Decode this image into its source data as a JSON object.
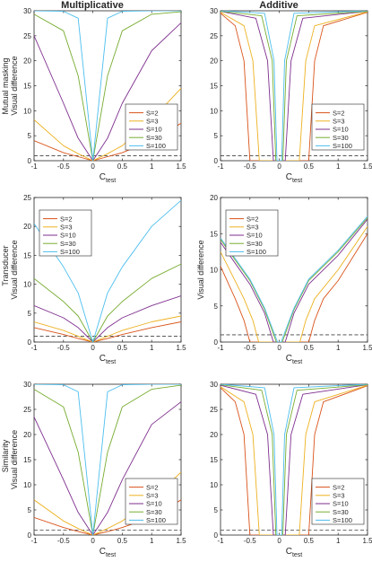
{
  "column_titles": [
    "Multiplicative",
    "Additive"
  ],
  "row_labels": [
    "Mutual masking",
    "Transducer",
    "Similarity"
  ],
  "ylabel": "Visual difference",
  "xlabel": "C",
  "xlabel_sub": "test",
  "threshold": 1,
  "colors": [
    "#d95319",
    "#edb120",
    "#7e2f8e",
    "#77ac30",
    "#4dbeee"
  ],
  "chart_data": [
    {
      "type": "line",
      "title": "Multiplicative",
      "row": "Mutual masking",
      "xlabel": "C test",
      "ylabel": "Visual difference",
      "xlim": [
        -1,
        1.5
      ],
      "ylim": [
        0,
        30
      ],
      "xticks": [
        -1,
        -0.5,
        0,
        0.5,
        1,
        1.5
      ],
      "yticks": [
        0,
        5,
        10,
        15,
        20,
        25,
        30
      ],
      "legend_loc": "bottom-right",
      "reference_line": 1,
      "series": [
        {
          "name": "S=2",
          "x": [
            -1,
            -0.5,
            -0.25,
            0,
            0.25,
            0.5,
            1,
            1.5
          ],
          "y": [
            4,
            1.6,
            0.8,
            0,
            0.8,
            1.6,
            4,
            7.5
          ]
        },
        {
          "name": "S=3",
          "x": [
            -1,
            -0.5,
            -0.25,
            0,
            0.25,
            0.5,
            1,
            1.5
          ],
          "y": [
            8.2,
            3,
            1.4,
            0,
            1.4,
            3,
            8.2,
            14.5
          ]
        },
        {
          "name": "S=10",
          "x": [
            -1,
            -0.5,
            -0.25,
            0,
            0.25,
            0.5,
            1,
            1.5
          ],
          "y": [
            25,
            11.5,
            4.5,
            0,
            4.5,
            11.5,
            22,
            27.6
          ]
        },
        {
          "name": "S=30",
          "x": [
            -1,
            -0.5,
            -0.25,
            0,
            0.25,
            0.5,
            1,
            1.5
          ],
          "y": [
            29.3,
            26,
            17,
            0,
            17,
            26,
            29.3,
            29.8
          ]
        },
        {
          "name": "S=100",
          "x": [
            -1,
            -0.5,
            -0.25,
            0,
            0.25,
            0.5,
            1,
            1.5
          ],
          "y": [
            30,
            29.9,
            28.5,
            0,
            28.5,
            29.9,
            30,
            30
          ]
        }
      ]
    },
    {
      "type": "line",
      "title": "Additive",
      "row": "Mutual masking",
      "xlabel": "C test",
      "ylabel": "",
      "xlim": [
        -1,
        1.5
      ],
      "ylim": [
        0,
        30
      ],
      "xticks": [
        -1,
        -0.5,
        0,
        0.5,
        1,
        1.5
      ],
      "yticks": [
        0,
        5,
        10,
        15,
        20,
        25,
        30
      ],
      "legend_loc": "bottom-right",
      "reference_line": 1,
      "series": [
        {
          "name": "S=2",
          "x": [
            -1,
            -0.75,
            -0.6,
            -0.5,
            0.5,
            0.6,
            0.75,
            1.5
          ],
          "y": [
            29.5,
            27,
            20,
            0,
            0,
            20,
            27,
            29.7
          ]
        },
        {
          "name": "S=3",
          "x": [
            -1,
            -0.6,
            -0.45,
            -0.34,
            0.34,
            0.45,
            0.6,
            1.5
          ],
          "y": [
            29.7,
            27,
            20,
            0,
            0,
            20,
            27,
            29.8
          ]
        },
        {
          "name": "S=10",
          "x": [
            -1,
            -0.4,
            -0.2,
            -0.1,
            0.1,
            0.2,
            0.4,
            1.5
          ],
          "y": [
            29.9,
            28.5,
            20,
            0,
            0,
            20,
            28.5,
            29.9
          ]
        },
        {
          "name": "S=30",
          "x": [
            -1,
            -0.3,
            -0.12,
            -0.06,
            0.06,
            0.12,
            0.3,
            1.5
          ],
          "y": [
            29.9,
            29,
            20,
            0,
            0,
            20,
            29,
            29.9
          ]
        },
        {
          "name": "S=100",
          "x": [
            -1,
            -0.25,
            -0.09,
            -0.04,
            0.04,
            0.09,
            0.25,
            1.5
          ],
          "y": [
            30,
            29.5,
            20,
            0,
            0,
            20,
            29.5,
            30
          ]
        }
      ]
    },
    {
      "type": "line",
      "title": "",
      "row": "Transducer",
      "xlabel": "C test",
      "ylabel": "Visual difference",
      "xlim": [
        -1,
        1.5
      ],
      "ylim": [
        0,
        25
      ],
      "xticks": [
        -1,
        -0.5,
        0,
        0.5,
        1,
        1.5
      ],
      "yticks": [
        0,
        5,
        10,
        15,
        20,
        25
      ],
      "legend_loc": "top-left",
      "reference_line": 1,
      "series": [
        {
          "name": "S=2",
          "x": [
            -1,
            -0.5,
            -0.25,
            0,
            0.25,
            0.5,
            1,
            1.5
          ],
          "y": [
            2.5,
            1.3,
            0.6,
            0,
            0.6,
            1.3,
            2.5,
            3.5
          ]
        },
        {
          "name": "S=3",
          "x": [
            -1,
            -0.5,
            -0.25,
            0,
            0.25,
            0.5,
            1,
            1.5
          ],
          "y": [
            3.5,
            2,
            1,
            0,
            1,
            2,
            3.5,
            4.5
          ]
        },
        {
          "name": "S=10",
          "x": [
            -1,
            -0.5,
            -0.25,
            0,
            0.25,
            0.5,
            1,
            1.5
          ],
          "y": [
            6.3,
            4.2,
            2.5,
            0,
            2.5,
            4.2,
            6.3,
            8
          ]
        },
        {
          "name": "S=30",
          "x": [
            -1,
            -0.5,
            -0.25,
            0,
            0.25,
            0.5,
            1,
            1.5
          ],
          "y": [
            11,
            7,
            4.5,
            0,
            4.5,
            7,
            11,
            13.5
          ]
        },
        {
          "name": "S=100",
          "x": [
            -1,
            -0.5,
            -0.25,
            0,
            0.25,
            0.5,
            1,
            1.5
          ],
          "y": [
            20.5,
            13,
            8.5,
            0,
            8.5,
            13,
            20,
            24.5
          ]
        }
      ]
    },
    {
      "type": "line",
      "title": "",
      "row": "Transducer",
      "xlabel": "C test",
      "ylabel": "Visual difference",
      "xlim": [
        -1,
        1.5
      ],
      "ylim": [
        0,
        20
      ],
      "xticks": [
        -1,
        -0.5,
        0,
        0.5,
        1,
        1.5
      ],
      "yticks": [
        0,
        5,
        10,
        15,
        20
      ],
      "legend_loc": "top-left",
      "reference_line": 1,
      "series": [
        {
          "name": "S=2",
          "x": [
            -1,
            -0.75,
            -0.6,
            -0.5,
            0.5,
            0.6,
            0.75,
            1,
            1.5
          ],
          "y": [
            10.5,
            6,
            3,
            0,
            0,
            3,
            6,
            8.5,
            15
          ]
        },
        {
          "name": "S=3",
          "x": [
            -1,
            -0.6,
            -0.45,
            -0.35,
            0.35,
            0.45,
            0.6,
            1,
            1.5
          ],
          "y": [
            12.5,
            6,
            3,
            0,
            0,
            3,
            6,
            10,
            16
          ]
        },
        {
          "name": "S=10",
          "x": [
            -1,
            -0.5,
            -0.25,
            -0.1,
            0.1,
            0.25,
            0.5,
            1,
            1.5
          ],
          "y": [
            13.8,
            8,
            4,
            0,
            0,
            4,
            8,
            12,
            17
          ]
        },
        {
          "name": "S=30",
          "x": [
            -1,
            -0.5,
            -0.25,
            -0.05,
            0.05,
            0.25,
            0.5,
            1,
            1.5
          ],
          "y": [
            14.2,
            8.5,
            4.5,
            0,
            0,
            4.5,
            8.5,
            12.5,
            17.2
          ]
        },
        {
          "name": "S=100",
          "x": [
            -1,
            -0.5,
            -0.25,
            -0.03,
            0.03,
            0.25,
            0.5,
            1,
            1.5
          ],
          "y": [
            14.4,
            8.7,
            4.7,
            0,
            0,
            4.7,
            8.7,
            12.7,
            17.4
          ]
        }
      ]
    },
    {
      "type": "line",
      "title": "",
      "row": "Similarity",
      "xlabel": "C test",
      "ylabel": "Visual difference",
      "xlim": [
        -1,
        1.5
      ],
      "ylim": [
        0,
        30
      ],
      "xticks": [
        -1,
        -0.5,
        0,
        0.5,
        1,
        1.5
      ],
      "yticks": [
        0,
        5,
        10,
        15,
        20,
        25,
        30
      ],
      "legend_loc": "bottom-right",
      "reference_line": 1,
      "series": [
        {
          "name": "S=2",
          "x": [
            -1,
            -0.5,
            -0.25,
            0,
            0.25,
            0.5,
            1,
            1.5
          ],
          "y": [
            3.5,
            1.5,
            0.7,
            0,
            0.7,
            1.5,
            3.5,
            7
          ]
        },
        {
          "name": "S=3",
          "x": [
            -1,
            -0.5,
            -0.25,
            0,
            0.25,
            0.5,
            1,
            1.5
          ],
          "y": [
            7,
            2.8,
            1.3,
            0,
            1.3,
            2.8,
            7,
            12.5
          ]
        },
        {
          "name": "S=10",
          "x": [
            -1,
            -0.5,
            -0.25,
            0,
            0.25,
            0.5,
            1,
            1.5
          ],
          "y": [
            23.5,
            11,
            4.5,
            0,
            4.5,
            11,
            22,
            26.5
          ]
        },
        {
          "name": "S=30",
          "x": [
            -1,
            -0.5,
            -0.25,
            0,
            0.25,
            0.5,
            1,
            1.5
          ],
          "y": [
            29,
            25.5,
            16.5,
            0,
            16.5,
            25.5,
            29,
            29.8
          ]
        },
        {
          "name": "S=100",
          "x": [
            -1,
            -0.5,
            -0.25,
            0,
            0.25,
            0.5,
            1,
            1.5
          ],
          "y": [
            30,
            29.9,
            28.5,
            0,
            28.5,
            29.9,
            30,
            30
          ]
        }
      ]
    },
    {
      "type": "line",
      "title": "",
      "row": "Similarity",
      "xlabel": "C test",
      "ylabel": "",
      "xlim": [
        -1,
        1.5
      ],
      "ylim": [
        0,
        30
      ],
      "xticks": [
        -1,
        -0.5,
        0,
        0.5,
        1,
        1.5
      ],
      "yticks": [
        0,
        5,
        10,
        15,
        20,
        25,
        30
      ],
      "legend_loc": "bottom-right",
      "reference_line": 1,
      "series": [
        {
          "name": "S=2",
          "x": [
            -1,
            -0.75,
            -0.6,
            -0.5,
            0.5,
            0.6,
            0.75,
            1.5
          ],
          "y": [
            29.3,
            26.5,
            20,
            0,
            0,
            20,
            26.5,
            29.7
          ]
        },
        {
          "name": "S=3",
          "x": [
            -1,
            -0.6,
            -0.45,
            -0.34,
            0.34,
            0.45,
            0.6,
            1.5
          ],
          "y": [
            29.5,
            26.5,
            20,
            0,
            0,
            20,
            26.5,
            29.8
          ]
        },
        {
          "name": "S=10",
          "x": [
            -1,
            -0.4,
            -0.2,
            -0.1,
            0.1,
            0.2,
            0.4,
            1.5
          ],
          "y": [
            29.8,
            28,
            20,
            0,
            0,
            20,
            28,
            29.9
          ]
        },
        {
          "name": "S=30",
          "x": [
            -1,
            -0.3,
            -0.12,
            -0.06,
            0.06,
            0.12,
            0.3,
            1.5
          ],
          "y": [
            29.9,
            28.8,
            20,
            0,
            0,
            20,
            28.8,
            29.9
          ]
        },
        {
          "name": "S=100",
          "x": [
            -1,
            -0.25,
            -0.09,
            -0.04,
            0.04,
            0.09,
            0.25,
            1.5
          ],
          "y": [
            30,
            29.3,
            20,
            0,
            0,
            20,
            29.3,
            30
          ]
        }
      ]
    }
  ]
}
